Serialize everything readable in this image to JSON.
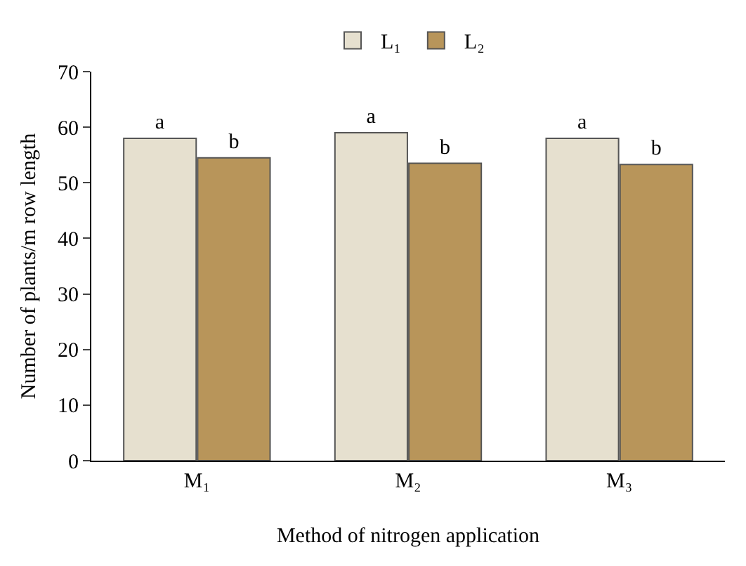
{
  "chart_data": {
    "type": "bar",
    "xlabel": "Method of nitrogen application",
    "ylabel": "Number of plants/m row length",
    "categories": [
      "M₁",
      "M₂",
      "M₃"
    ],
    "series": [
      {
        "name": "L₁",
        "color": "#e6e0cf",
        "values": [
          58,
          59,
          58
        ],
        "value_labels": [
          "a",
          "a",
          "a"
        ]
      },
      {
        "name": "L₂",
        "color": "#b8955a",
        "values": [
          54.5,
          53.5,
          53.3
        ],
        "value_labels": [
          "b",
          "b",
          "b"
        ]
      }
    ],
    "ylim": [
      0,
      70
    ],
    "yticks": [
      0,
      10,
      20,
      30,
      40,
      50,
      60,
      70
    ],
    "grid": false,
    "legend": "top"
  }
}
